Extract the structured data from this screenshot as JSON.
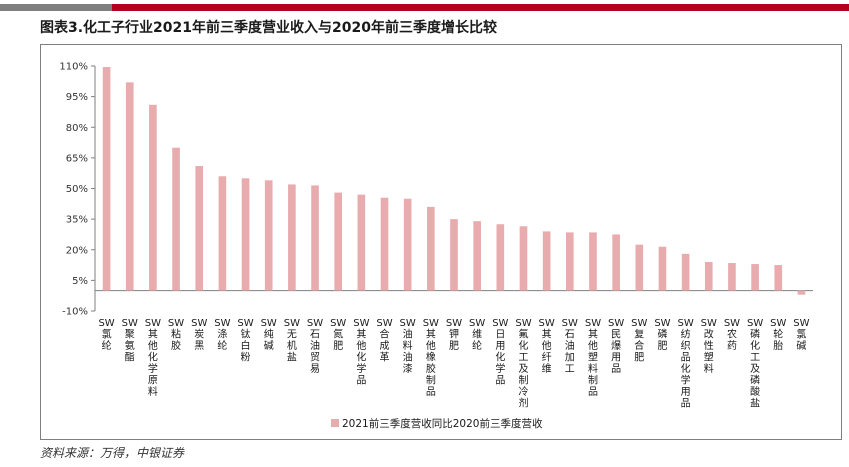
{
  "title": "图表3.化工子行业2021年前三季度营业收入与2020年前三季度增长比较",
  "source": "资料来源：万得，中银证券",
  "colors": {
    "bar": "#e8acae",
    "axis": "#7f7f7f",
    "accent_red": "#b5001f",
    "accent_gray": "#7f7f7f"
  },
  "chart_data": {
    "type": "bar",
    "title": "",
    "xlabel": "",
    "ylabel": "",
    "ylim": [
      -10,
      110
    ],
    "yticks": [
      110,
      95,
      80,
      65,
      50,
      35,
      20,
      5,
      -10
    ],
    "ytick_labels": [
      "110%",
      "95%",
      "80%",
      "65%",
      "50%",
      "35%",
      "20%",
      "5%",
      "-10%"
    ],
    "legend": {
      "position": "bottom",
      "label": "2021前三季度营收同比2020前三季度营收"
    },
    "grid": false,
    "categories": [
      "SW氯纶",
      "SW聚氨酯",
      "SW其他化学原料",
      "SW粘胶",
      "SW炭黑",
      "SW涤纶",
      "SW钛白粉",
      "SW纯碱",
      "SW无机盐",
      "SW石油贸易",
      "SW氮肥",
      "SW其他化学品",
      "SW合成革",
      "SW油料油漆",
      "SW其他橡胶制品",
      "SW钾肥",
      "SW维纶",
      "SW日用化学品",
      "SW氟化工及制冷剂",
      "SW其他纤维",
      "SW石油加工",
      "SW其他塑料制品",
      "SW民爆用品",
      "SW复合肥",
      "SW磷肥",
      "SW纺织品化学用品",
      "SW改性塑料",
      "SW农药",
      "SW磷化工及磷酸盐",
      "SW轮胎",
      "SW氯碱"
    ],
    "values": [
      109.5,
      102,
      91,
      70,
      61,
      56,
      55,
      54,
      52,
      51.5,
      48,
      47,
      45.5,
      45,
      41,
      35,
      34,
      32.5,
      31.5,
      29,
      28.5,
      28.5,
      27.5,
      22.5,
      21.5,
      18,
      14,
      13.5,
      13,
      12.5,
      -2
    ]
  }
}
